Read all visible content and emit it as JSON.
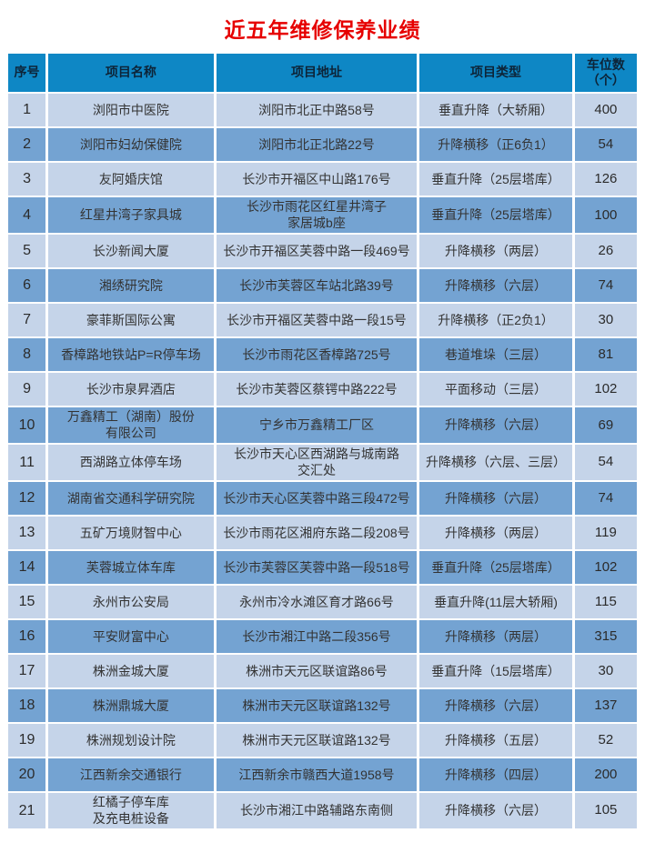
{
  "page_title": "近五年维修保养业绩",
  "colors": {
    "title_red": "#e60000",
    "header_bg": "#0e87c5",
    "header_text": "#0d2438",
    "row_light": "#c5d4e9",
    "row_dark": "#74a3d2",
    "cell_text": "#333333",
    "grid_line": "#ffffff"
  },
  "table": {
    "headers": [
      "序号",
      "项目名称",
      "项目地址",
      "项目类型",
      "车位数\n（个）"
    ],
    "rows": [
      {
        "no": "1",
        "name": "浏阳市中医院",
        "address": "浏阳市北正中路58号",
        "type": "垂直升降（大轿厢）",
        "spaces": "400"
      },
      {
        "no": "2",
        "name": "浏阳市妇幼保健院",
        "address": "浏阳市北正北路22号",
        "type": "升降横移（正6负1）",
        "spaces": "54"
      },
      {
        "no": "3",
        "name": "友阿婚庆馆",
        "address": "长沙市开福区中山路176号",
        "type": "垂直升降（25层塔库）",
        "spaces": "126"
      },
      {
        "no": "4",
        "name": "红星井湾子家具城",
        "address": "长沙市雨花区红星井湾子\n家居城b座",
        "type": "垂直升降（25层塔库）",
        "spaces": "100"
      },
      {
        "no": "5",
        "name": "长沙新闻大厦",
        "address": "长沙市开福区芙蓉中路一段469号",
        "type": "升降横移（两层）",
        "spaces": "26"
      },
      {
        "no": "6",
        "name": "湘绣研究院",
        "address": "长沙市芙蓉区车站北路39号",
        "type": "升降横移（六层）",
        "spaces": "74"
      },
      {
        "no": "7",
        "name": "豪菲斯国际公寓",
        "address": "长沙市开福区芙蓉中路一段15号",
        "type": "升降横移（正2负1）",
        "spaces": "30"
      },
      {
        "no": "8",
        "name": "香樟路地铁站P=R停车场",
        "address": "长沙市雨花区香樟路725号",
        "type": "巷道堆垛（三层）",
        "spaces": "81"
      },
      {
        "no": "9",
        "name": "长沙市泉昇酒店",
        "address": "长沙市芙蓉区蔡锷中路222号",
        "type": "平面移动（三层）",
        "spaces": "102"
      },
      {
        "no": "10",
        "name": "万鑫精工（湖南）股份\n有限公司",
        "address": "宁乡市万鑫精工厂区",
        "type": "升降横移（六层）",
        "spaces": "69"
      },
      {
        "no": "11",
        "name": "西湖路立体停车场",
        "address": "长沙市天心区西湖路与城南路\n交汇处",
        "type": "升降横移（六层、三层）",
        "spaces": "54"
      },
      {
        "no": "12",
        "name": "湖南省交通科学研究院",
        "address": "长沙市天心区芙蓉中路三段472号",
        "type": "升降横移（六层）",
        "spaces": "74"
      },
      {
        "no": "13",
        "name": "五矿万境财智中心",
        "address": "长沙市雨花区湘府东路二段208号",
        "type": "升降横移（两层）",
        "spaces": "119"
      },
      {
        "no": "14",
        "name": "芙蓉城立体车库",
        "address": "长沙市芙蓉区芙蓉中路一段518号",
        "type": "垂直升降（25层塔库）",
        "spaces": "102"
      },
      {
        "no": "15",
        "name": "永州市公安局",
        "address": "永州市冷水滩区育才路66号",
        "type": "垂直升降(11层大轿厢)",
        "spaces": "115"
      },
      {
        "no": "16",
        "name": "平安财富中心",
        "address": "长沙市湘江中路二段356号",
        "type": "升降横移（两层）",
        "spaces": "315"
      },
      {
        "no": "17",
        "name": "株洲金城大厦",
        "address": "株洲市天元区联谊路86号",
        "type": "垂直升降（15层塔库）",
        "spaces": "30"
      },
      {
        "no": "18",
        "name": "株洲鼎城大厦",
        "address": "株洲市天元区联谊路132号",
        "type": "升降横移（六层）",
        "spaces": "137"
      },
      {
        "no": "19",
        "name": "株洲规划设计院",
        "address": "株洲市天元区联谊路132号",
        "type": "升降横移（五层）",
        "spaces": "52"
      },
      {
        "no": "20",
        "name": "江西新余交通银行",
        "address": "江西新余市赣西大道1958号",
        "type": "升降横移（四层）",
        "spaces": "200"
      },
      {
        "no": "21",
        "name": "红橘子停车库\n及充电桩设备",
        "address": "长沙市湘江中路辅路东南侧",
        "type": "升降横移（六层）",
        "spaces": "105"
      }
    ]
  }
}
